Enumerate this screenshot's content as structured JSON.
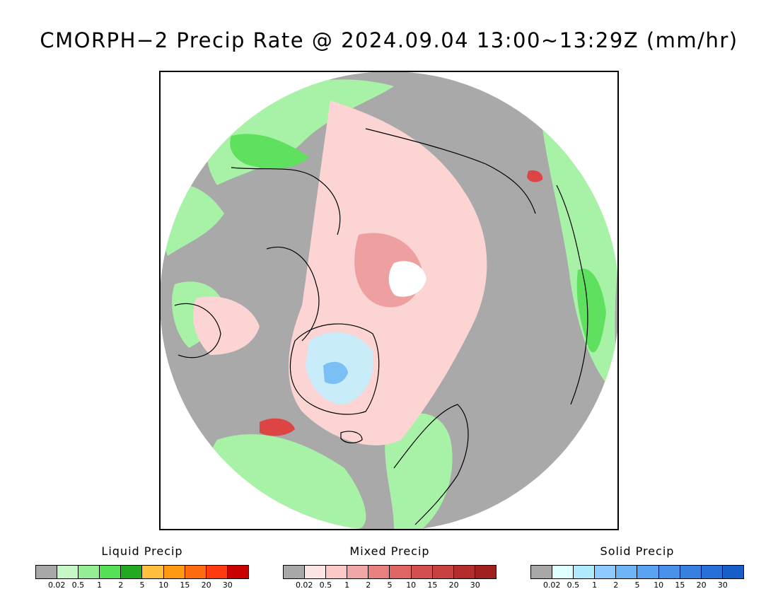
{
  "title": "CMORPH−2 Precip Rate @ 2024.09.04 13:00~13:29Z (mm/hr)",
  "map": {
    "projection": "north-polar-stereographic",
    "colors": {
      "no_precip": "#a9a9a9",
      "liquid_light": "#a8f2a8",
      "liquid_mid": "#5fe05f",
      "mixed_light": "#fcd4d4",
      "mixed_mid": "#ee9f9f",
      "mixed_strong": "#dd4444",
      "solid_light": "#c8ecfa",
      "solid_mid": "#7ac0f5",
      "coastline": "#000000",
      "pole_gap": "#ffffff"
    }
  },
  "legends": [
    {
      "title": "Liquid Precip",
      "ticks": [
        "0.02",
        "0.5",
        "1",
        "2",
        "5",
        "10",
        "15",
        "20",
        "30"
      ],
      "colors": [
        "#a8a8a8",
        "#c6f7c6",
        "#94ee94",
        "#55e055",
        "#22aa22",
        "#ffc040",
        "#ff9a10",
        "#ff6b10",
        "#ff3a10",
        "#c80000"
      ]
    },
    {
      "title": "Mixed Precip",
      "ticks": [
        "0.02",
        "0.5",
        "1",
        "2",
        "5",
        "10",
        "15",
        "20",
        "30"
      ],
      "colors": [
        "#a8a8a8",
        "#ffe4e4",
        "#fcc8c8",
        "#f1a6a6",
        "#e88080",
        "#df6464",
        "#d45050",
        "#c84040",
        "#b42c2c",
        "#a02020"
      ]
    },
    {
      "title": "Solid Precip",
      "ticks": [
        "0.02",
        "0.5",
        "1",
        "2",
        "5",
        "10",
        "15",
        "20",
        "30"
      ],
      "colors": [
        "#a8a8a8",
        "#e0ffff",
        "#b0eaff",
        "#8ecaff",
        "#70b4f8",
        "#5aa2f2",
        "#4890ea",
        "#3880e0",
        "#2870d8",
        "#1860c8"
      ]
    }
  ]
}
